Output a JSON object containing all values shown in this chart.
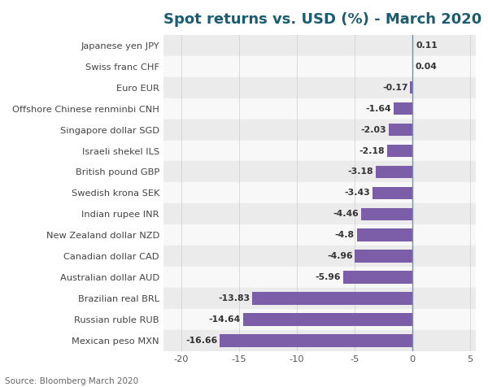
{
  "title": "Spot returns vs. USD (%) - March 2020",
  "source": "Source: Bloomberg March 2020",
  "categories": [
    "Japanese yen JPY",
    "Swiss franc CHF",
    "Euro EUR",
    "Offshore Chinese renminbi CNH",
    "Singapore dollar SGD",
    "Israeli shekel ILS",
    "British pound GBP",
    "Swedish krona SEK",
    "Indian rupee INR",
    "New Zealand dollar NZD",
    "Canadian dollar CAD",
    "Australian dollar AUD",
    "Brazilian real BRL",
    "Russian ruble RUB",
    "Mexican peso MXN"
  ],
  "values": [
    0.11,
    0.04,
    -0.17,
    -1.64,
    -2.03,
    -2.18,
    -3.18,
    -3.43,
    -4.46,
    -4.8,
    -4.96,
    -5.96,
    -13.83,
    -14.64,
    -16.66
  ],
  "bar_color_positive": "#3a7fbf",
  "bar_color_negative": "#7b5ea7",
  "row_bg_odd": "#ebebeb",
  "row_bg_even": "#f8f8f8",
  "title_color": "#1a5c72",
  "label_color": "#444444",
  "value_color": "#333333",
  "xlim": [
    -21.5,
    5.5
  ],
  "xticks": [
    -20,
    -15,
    -10,
    -5,
    0,
    5
  ],
  "figsize": [
    6.0,
    4.76
  ],
  "dpi": 100,
  "title_fontsize": 13,
  "label_fontsize": 8.2,
  "value_fontsize": 7.8,
  "source_fontsize": 7.5,
  "bar_height": 0.6
}
